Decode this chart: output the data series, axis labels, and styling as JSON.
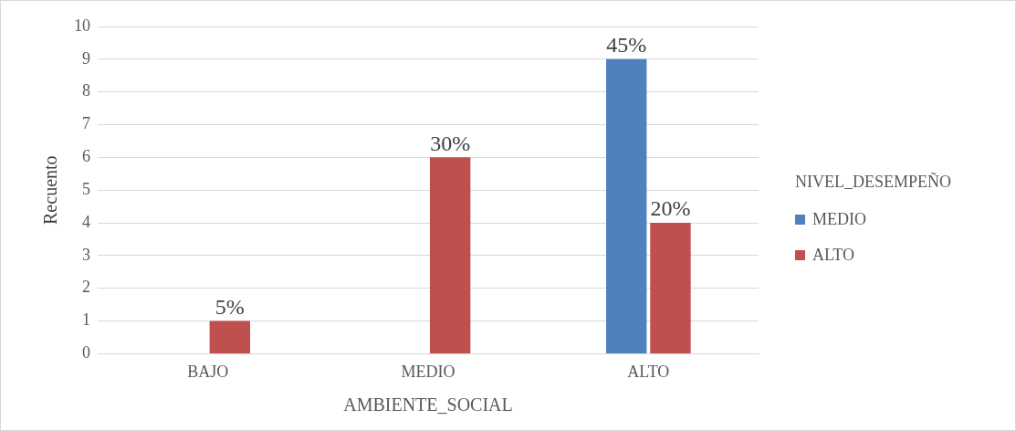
{
  "chart_data": {
    "type": "bar",
    "xlabel": "AMBIENTE_SOCIAL",
    "ylabel": "Recuento",
    "legend_title": "NIVEL_DESEMPEÑO",
    "categories": [
      "BAJO",
      "MEDIO",
      "ALTO"
    ],
    "series": [
      {
        "name": "MEDIO",
        "color": "#4f81bd",
        "values": [
          null,
          null,
          9
        ]
      },
      {
        "name": "ALTO",
        "color": "#c0504d",
        "values": [
          1,
          6,
          4
        ]
      }
    ],
    "annotations": [
      {
        "text": "5%",
        "x": "BAJO",
        "y": 1
      },
      {
        "text": "30%",
        "x": "MEDIO",
        "y": 6
      },
      {
        "text": "45%",
        "x": "ALTO",
        "y": 9
      },
      {
        "text": "20%",
        "x": "ALTO",
        "y": 4
      }
    ],
    "ylim": [
      0,
      10
    ],
    "yticks": [
      0,
      1,
      2,
      3,
      4,
      5,
      6,
      7,
      8,
      9,
      10
    ],
    "grid": "y",
    "legend": "right"
  }
}
